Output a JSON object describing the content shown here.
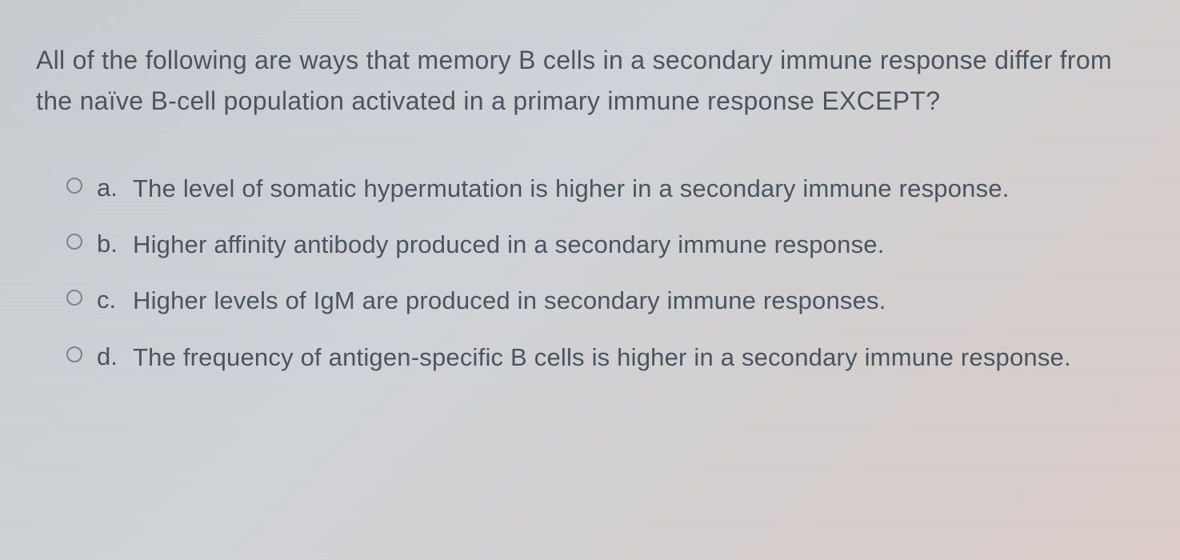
{
  "question": {
    "text": "All of the following are ways that memory B cells in a secondary immune response differ from the naïve B-cell population activated in a primary immune response EXCEPT?"
  },
  "options": [
    {
      "label": "a.",
      "text": "The level of somatic hypermutation is higher in a secondary immune response."
    },
    {
      "label": "b.",
      "text": "Higher affinity antibody produced in a secondary immune response."
    },
    {
      "label": "c.",
      "text": "Higher levels of IgM are produced in secondary immune responses."
    },
    {
      "label": "d.",
      "text": "The frequency of antigen-specific B cells is higher in a secondary immune response."
    }
  ],
  "colors": {
    "text": "#4a5560",
    "radio_border": "#7a8590",
    "background_start": "#c8ccd0",
    "background_end": "#dccdc8"
  },
  "typography": {
    "question_fontsize": 32,
    "option_fontsize": 31,
    "font_family": "Arial"
  }
}
